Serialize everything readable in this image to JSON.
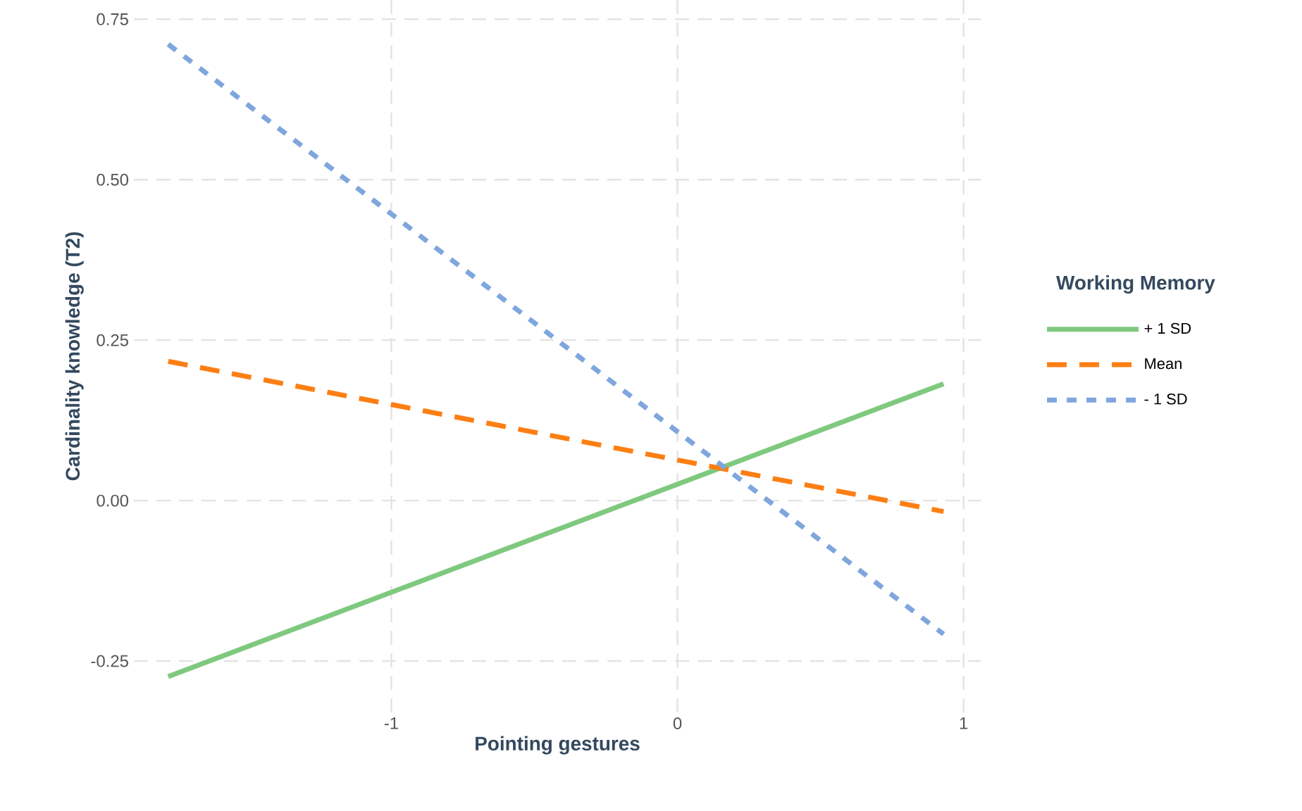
{
  "chart_data": {
    "type": "line",
    "xlabel": "Pointing gestures",
    "ylabel": "Cardinality knowledge (T2)",
    "legend_title": "Working Memory",
    "xlim": [
      -1.9,
      1.06
    ],
    "ylim": [
      -0.33,
      0.78
    ],
    "xticks": [
      -1,
      0,
      1
    ],
    "yticks": [
      {
        "value": -0.25,
        "label": "-0.25"
      },
      {
        "value": 0,
        "label": "0.00"
      },
      {
        "value": 0.25,
        "label": "0.25"
      },
      {
        "value": 0.5,
        "label": "0.50"
      },
      {
        "value": 0.75,
        "label": "0.75"
      }
    ],
    "grid": true,
    "legend": "right",
    "marker": "none",
    "x": [
      -1.78,
      0.93
    ],
    "series": [
      {
        "name": "+ 1 SD",
        "color": "#7fc97f",
        "line_style": "solid",
        "values": [
          -0.274,
          0.182
        ]
      },
      {
        "name": "Mean",
        "color": "#fd7f13",
        "line_style": "dashed",
        "values": [
          0.217,
          -0.017
        ]
      },
      {
        "name": "- 1 SD",
        "color": "#7fa6dd",
        "line_style": "dotted",
        "values": [
          0.711,
          -0.208
        ]
      }
    ]
  }
}
